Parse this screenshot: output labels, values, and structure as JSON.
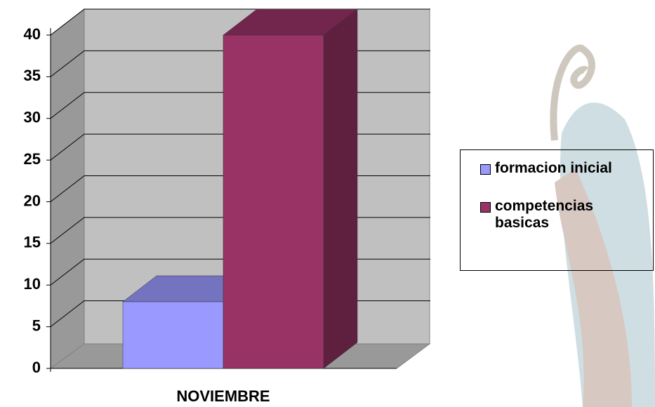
{
  "chart_data": {
    "type": "bar3d",
    "categories": [
      "NOVIEMBRE"
    ],
    "series": [
      {
        "name": "formacion inicial",
        "color": "#9999ff",
        "values": [
          8
        ]
      },
      {
        "name": "competencias basicas",
        "color": "#993366",
        "values": [
          40
        ]
      }
    ],
    "ylim": [
      0,
      40
    ],
    "yticks": [
      0,
      5,
      10,
      15,
      20,
      25,
      30,
      35,
      40
    ],
    "grid": true
  }
}
